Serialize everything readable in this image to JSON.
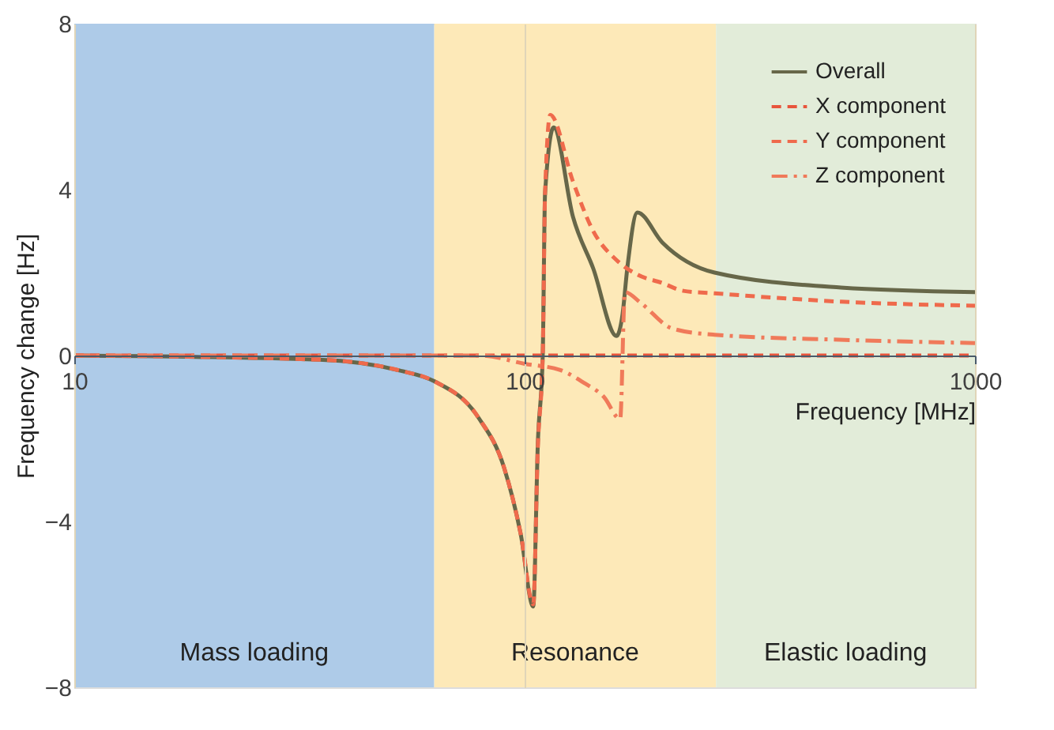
{
  "chart_data": {
    "type": "line",
    "xlabel": "Frequency [MHz]",
    "ylabel": "Frequency change [Hz]",
    "log": "x",
    "xlim": [
      10,
      1000
    ],
    "xticks": [
      10,
      100,
      1000
    ],
    "ylim": [
      -8,
      8
    ],
    "yticks": [
      -8,
      -4,
      0,
      4,
      8
    ],
    "grid": "x",
    "legend": "top right",
    "marker": "none",
    "series": [
      {
        "name": "Overall",
        "color": "#676749",
        "line_style": "solid",
        "x": [
          10,
          35,
          52.7,
          63,
          79,
          90,
          98,
          104.5,
          107,
          109.7,
          111,
          116,
          128,
          142,
          160,
          165,
          169,
          178,
          202,
          264,
          504,
          1000
        ],
        "values": [
          0,
          -0.1,
          -0.36,
          -0.62,
          -1.5,
          -2.7,
          -4.3,
          -6.05,
          -2.1,
          0,
          3.9,
          5.5,
          3.35,
          2.1,
          0.47,
          1.0,
          2.1,
          3.45,
          2.73,
          2.0,
          1.64,
          1.53
        ]
      },
      {
        "name": "X component",
        "color": "#e8553c",
        "line_style": "dashed",
        "x": [
          10,
          1000
        ],
        "values": [
          0,
          0
        ]
      },
      {
        "name": "Y component",
        "color": "#ef6a4c",
        "line_style": "dashed",
        "x": [
          10,
          35,
          52.7,
          63,
          79,
          90,
          98,
          104.5,
          107,
          109.7,
          111,
          114,
          128,
          142,
          160,
          178,
          202,
          225,
          264,
          500,
          1000
        ],
        "values": [
          0,
          -0.1,
          -0.36,
          -0.62,
          -1.5,
          -2.7,
          -4.3,
          -6.0,
          -2.2,
          0,
          3.9,
          5.8,
          4.2,
          3.0,
          2.3,
          1.95,
          1.75,
          1.56,
          1.5,
          1.3,
          1.2
        ]
      },
      {
        "name": "Z component",
        "color": "#f07a5a",
        "line_style": "dashdot",
        "x": [
          10,
          80,
          100,
          120,
          135,
          150,
          163,
          167,
          181,
          213,
          264,
          500,
          1000
        ],
        "values": [
          0,
          0,
          -0.2,
          -0.35,
          -0.65,
          -1.0,
          -1.53,
          1.53,
          1.27,
          0.65,
          0.5,
          0.38,
          0.3
        ]
      }
    ],
    "bands": [
      {
        "axis": "x",
        "from": 10,
        "to": 63,
        "label": "Mass loading",
        "color": "#aecbe8"
      },
      {
        "axis": "x",
        "from": 63,
        "to": 266,
        "label": "Resonance",
        "color": "#fde9b8"
      },
      {
        "axis": "x",
        "from": 266,
        "to": 1000,
        "label": "Elastic loading",
        "color": "#e2ecd9"
      }
    ]
  }
}
